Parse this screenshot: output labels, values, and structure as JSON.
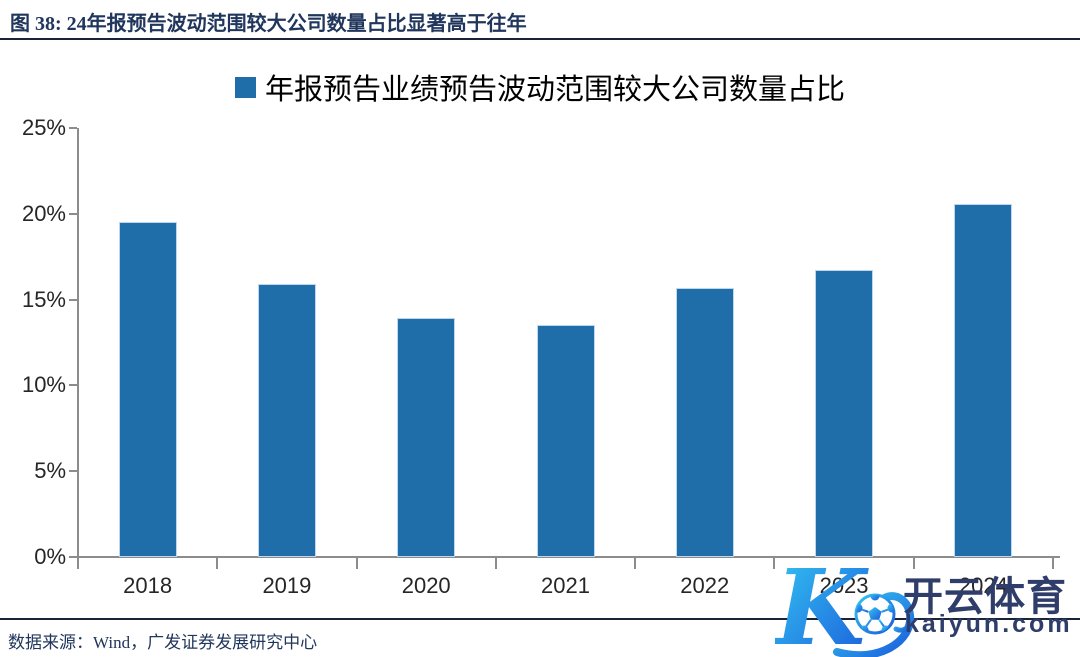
{
  "figure": {
    "title": "图 38: 24年报预告波动范围较大公司数量占比显著高于往年",
    "source": "数据来源：Wind，广发证券发展研究中心"
  },
  "chart_data": {
    "type": "bar",
    "title": "年报预告业绩预告波动范围较大公司数量占比",
    "legend": [
      "年报预告业绩预告波动范围较大公司数量占比"
    ],
    "legend_position": "top-center",
    "categories": [
      "2018",
      "2019",
      "2020",
      "2021",
      "2022",
      "2023",
      "2024"
    ],
    "values": [
      19.5,
      15.9,
      13.9,
      13.5,
      15.7,
      16.7,
      20.6
    ],
    "unit": "%",
    "xlabel": "",
    "ylabel": "",
    "ylim": [
      0,
      25
    ],
    "ytick_step": 5,
    "yticks": [
      "0%",
      "5%",
      "10%",
      "15%",
      "20%",
      "25%"
    ],
    "grid": false,
    "bar_color": "#1F6DA9",
    "bar_border_color": "#BDD7EE",
    "axis_color": "#8C8C8C"
  },
  "watermark": {
    "brand": "开云体育",
    "domain": "kaiyun.com",
    "icon": "kaiyun-k-with-soccer-ball",
    "text_color": "#2E3D69",
    "logo_gradient": [
      "#35C8F2",
      "#1A5BDB"
    ]
  },
  "colors": {
    "title_text": "#21365C",
    "separator": "#1A2438",
    "tick_label": "#262626"
  }
}
